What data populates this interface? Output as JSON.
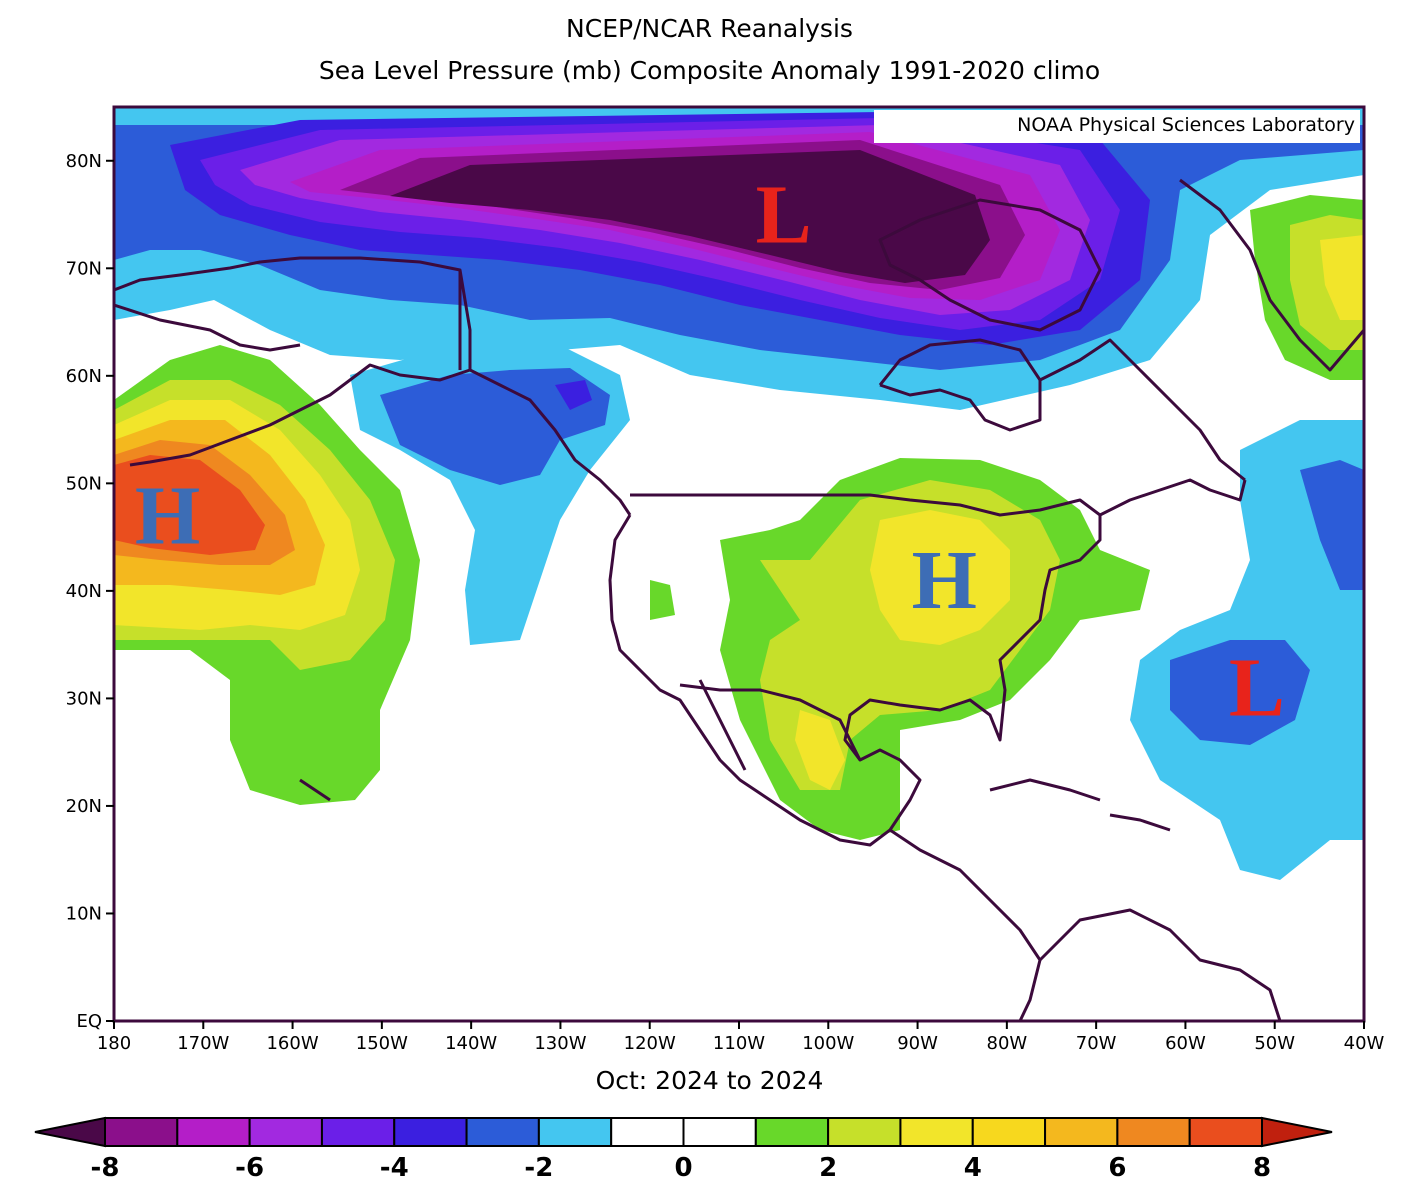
{
  "title": {
    "line1": "NCEP/NCAR Reanalysis",
    "line2": "Sea Level Pressure (mb) Composite Anomaly 1991-2020 climo"
  },
  "credit": "NOAA Physical Sciences Laboratory",
  "period": "Oct: 2024 to 2024",
  "axes": {
    "lat_labels": [
      "EQ",
      "10N",
      "20N",
      "30N",
      "40N",
      "50N",
      "60N",
      "70N",
      "80N"
    ],
    "lon_labels": [
      "180",
      "170W",
      "160W",
      "150W",
      "140W",
      "130W",
      "120W",
      "110W",
      "100W",
      "90W",
      "80W",
      "70W",
      "60W",
      "50W",
      "40W"
    ],
    "lat_range": [
      0,
      85
    ],
    "lon_range": [
      -180,
      -40
    ]
  },
  "pressure_systems": [
    {
      "label": "L",
      "kind": "low",
      "lon": -105,
      "lat": 75,
      "color": "#e8231b"
    },
    {
      "label": "H",
      "kind": "high",
      "lon": -174,
      "lat": 47,
      "color": "#3d6db5"
    },
    {
      "label": "H",
      "kind": "high",
      "lon": -87,
      "lat": 41,
      "color": "#3d6db5"
    },
    {
      "label": "L",
      "kind": "low",
      "lon": -52,
      "lat": 31,
      "color": "#e8231b"
    }
  ],
  "colorbar": {
    "labels": [
      "-8",
      "-6",
      "-4",
      "-2",
      "0",
      "2",
      "4",
      "6",
      "8"
    ],
    "colors": [
      "#4a0848",
      "#8b0f8b",
      "#b41ec8",
      "#a229e0",
      "#6b1fe8",
      "#3b1fe0",
      "#2c5cd8",
      "#44c6f0",
      "#ffffff",
      "#ffffff",
      "#68d82a",
      "#c6e02a",
      "#f2e52a",
      "#f7d81e",
      "#f4b81e",
      "#ef8820",
      "#ea4e1e",
      "#c0200e"
    ]
  }
}
